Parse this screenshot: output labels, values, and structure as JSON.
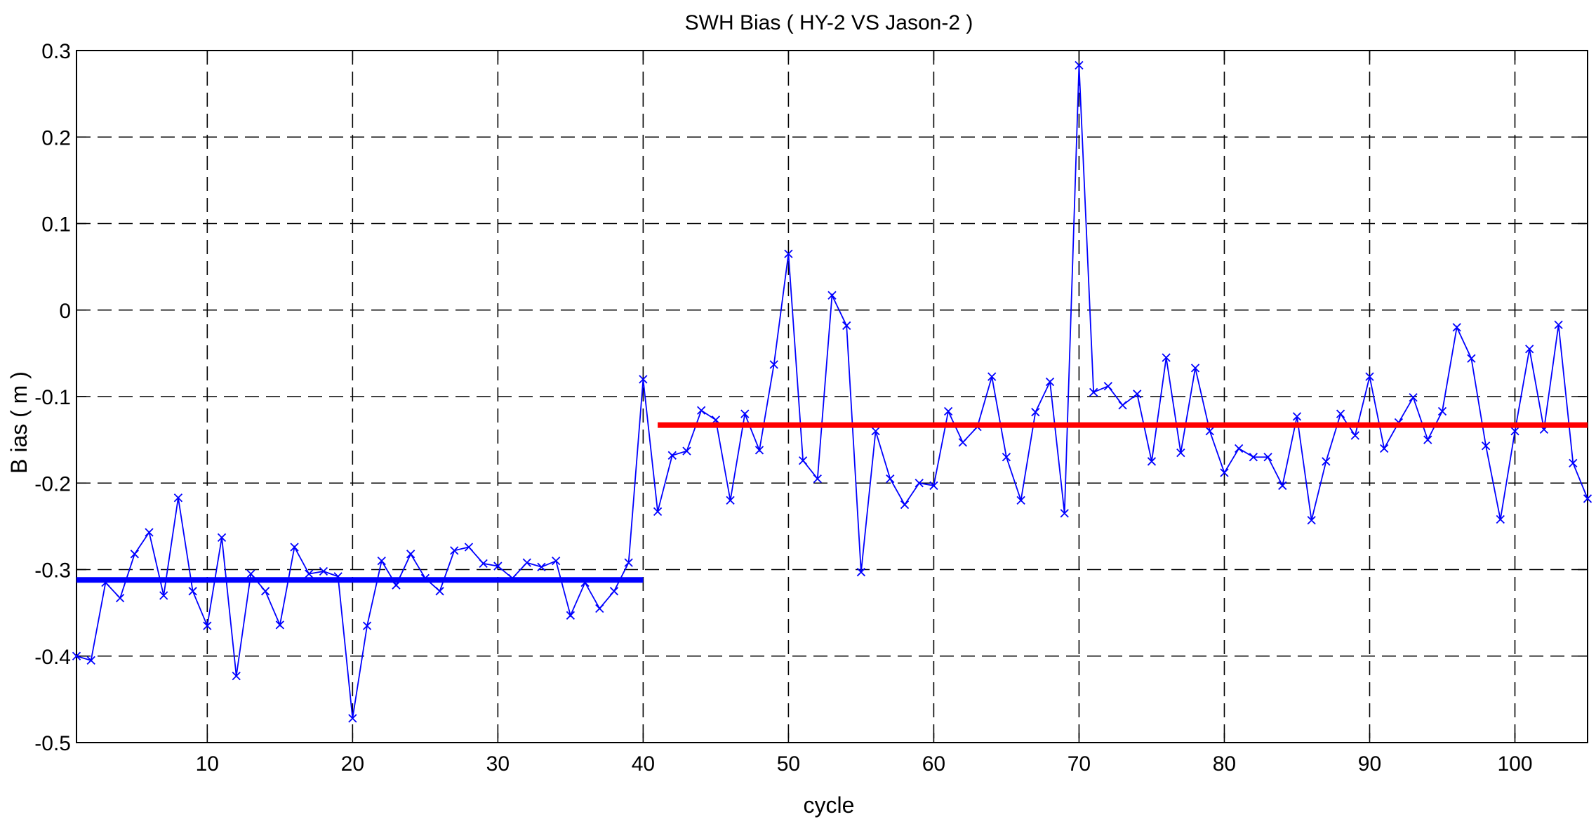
{
  "chart_data": {
    "type": "line",
    "title": "SWH Bias ( HY-2 VS Jason-2 )",
    "xlabel": "cycle",
    "ylabel": "B ias ( m )",
    "xlim": [
      1,
      105
    ],
    "ylim": [
      -0.5,
      0.3
    ],
    "grid": true,
    "x_ticks": [
      10,
      20,
      30,
      40,
      50,
      60,
      70,
      80,
      90,
      100
    ],
    "y_ticks": [
      -0.5,
      -0.4,
      -0.3,
      -0.2,
      -0.1,
      0,
      0.1,
      0.2,
      0.3
    ],
    "x_tick_labels": [
      "10",
      "20",
      "30",
      "40",
      "50",
      "60",
      "70",
      "80",
      "90",
      "100"
    ],
    "y_tick_labels": [
      "-0.5",
      "-0.4",
      "-0.3",
      "-0.2",
      "-0.1",
      "0",
      "0.1",
      "0.2",
      "0.3"
    ],
    "series": [
      {
        "color": "#0000ff",
        "marker": "x",
        "x": [
          1,
          2,
          3,
          4,
          5,
          6,
          7,
          8,
          9,
          10,
          11,
          12,
          13,
          14,
          15,
          16,
          17,
          18,
          19,
          20,
          21,
          22,
          23,
          24,
          25,
          26,
          27,
          28,
          29,
          30,
          31,
          32,
          33,
          34,
          35,
          36,
          37,
          38,
          39,
          40,
          41,
          42,
          43,
          44,
          45,
          46,
          47,
          48,
          49,
          50,
          51,
          52,
          53,
          54,
          55,
          56,
          57,
          58,
          59,
          60,
          61,
          62,
          63,
          64,
          65,
          66,
          67,
          68,
          69,
          70,
          71,
          72,
          73,
          74,
          75,
          76,
          77,
          78,
          79,
          80,
          81,
          82,
          83,
          84,
          85,
          86,
          87,
          88,
          89,
          90,
          91,
          92,
          93,
          94,
          95,
          96,
          97,
          98,
          99,
          100,
          101,
          102,
          103,
          104,
          105
        ],
        "y": [
          -0.4,
          -0.405,
          -0.315,
          -0.333,
          -0.282,
          -0.257,
          -0.33,
          -0.217,
          -0.325,
          -0.365,
          -0.263,
          -0.423,
          -0.305,
          -0.325,
          -0.364,
          -0.274,
          -0.305,
          -0.302,
          -0.308,
          -0.472,
          -0.365,
          -0.29,
          -0.318,
          -0.282,
          -0.31,
          -0.325,
          -0.278,
          -0.274,
          -0.293,
          -0.296,
          -0.31,
          -0.292,
          -0.297,
          -0.29,
          -0.353,
          -0.315,
          -0.345,
          -0.325,
          -0.292,
          -0.08,
          -0.233,
          -0.168,
          -0.163,
          -0.116,
          -0.127,
          -0.22,
          -0.12,
          -0.162,
          -0.063,
          0.065,
          -0.174,
          -0.195,
          0.017,
          -0.018,
          -0.303,
          -0.14,
          -0.195,
          -0.225,
          -0.2,
          -0.203,
          -0.117,
          -0.153,
          -0.135,
          -0.077,
          -0.17,
          -0.22,
          -0.118,
          -0.083,
          -0.235,
          0.283,
          -0.095,
          -0.088,
          -0.11,
          -0.097,
          -0.175,
          -0.055,
          -0.165,
          -0.067,
          -0.14,
          -0.188,
          -0.16,
          -0.17,
          -0.17,
          -0.203,
          -0.123,
          -0.243,
          -0.175,
          -0.12,
          -0.145,
          -0.077,
          -0.16,
          -0.13,
          -0.101,
          -0.15,
          -0.117,
          -0.02,
          -0.056,
          -0.157,
          -0.242,
          -0.14,
          -0.045,
          -0.138,
          -0.017,
          -0.177,
          -0.218
        ]
      },
      {
        "color": "#0000ff",
        "type": "hline",
        "x": [
          1,
          40
        ],
        "y": [
          -0.312,
          -0.312
        ]
      },
      {
        "color": "#ff0000",
        "type": "hline",
        "x": [
          41,
          105
        ],
        "y": [
          -0.133,
          -0.133
        ]
      }
    ]
  }
}
